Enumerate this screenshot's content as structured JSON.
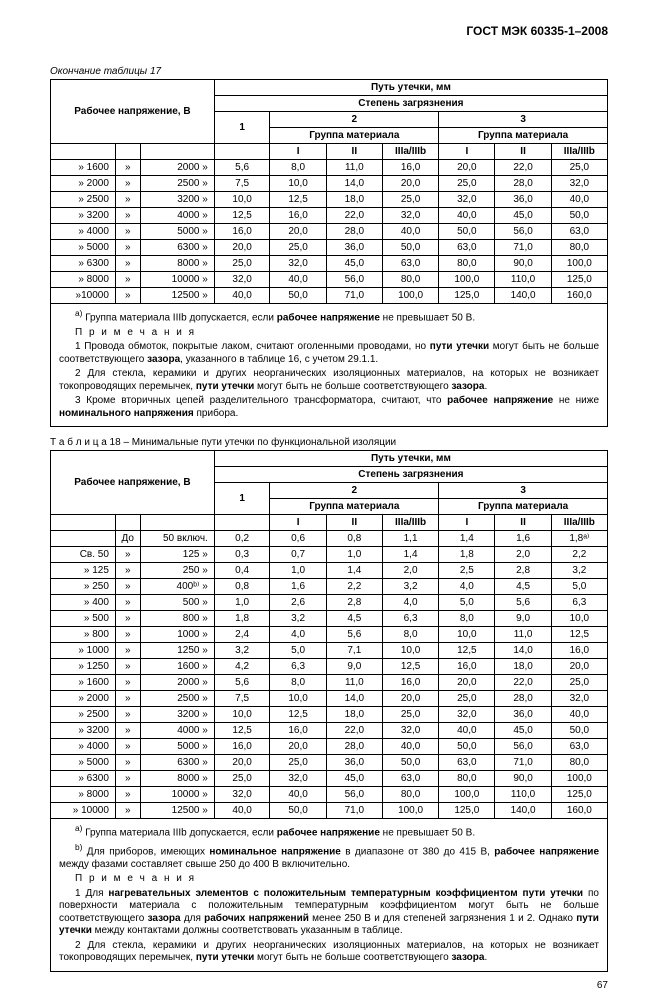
{
  "doc_id": "ГОСТ МЭК 60335-1–2008",
  "page_num": "67",
  "t17": {
    "caption": "Окончание таблицы 17",
    "hdr": {
      "rv": "Рабочее напряжение",
      "rv_unit": "В",
      "leak": "Путь утечки",
      "leak_unit": "мм",
      "degree": "Степень загрязнения",
      "group": "Группа материала",
      "c1": "1",
      "c2": "2",
      "c3": "3",
      "g1": "I",
      "g2": "II",
      "g3": "IIIa/IIIb"
    },
    "rows": [
      {
        "f": "» 1600",
        "s": "»",
        "t": "2000 »",
        "v": [
          "5,6",
          "8,0",
          "11,0",
          "16,0",
          "20,0",
          "22,0",
          "25,0"
        ]
      },
      {
        "f": "» 2000",
        "s": "»",
        "t": "2500 »",
        "v": [
          "7,5",
          "10,0",
          "14,0",
          "20,0",
          "25,0",
          "28,0",
          "32,0"
        ]
      },
      {
        "f": "» 2500",
        "s": "»",
        "t": "3200 »",
        "v": [
          "10,0",
          "12,5",
          "18,0",
          "25,0",
          "32,0",
          "36,0",
          "40,0"
        ]
      },
      {
        "f": "» 3200",
        "s": "»",
        "t": "4000 »",
        "v": [
          "12,5",
          "16,0",
          "22,0",
          "32,0",
          "40,0",
          "45,0",
          "50,0"
        ]
      },
      {
        "f": "» 4000",
        "s": "»",
        "t": "5000 »",
        "v": [
          "16,0",
          "20,0",
          "28,0",
          "40,0",
          "50,0",
          "56,0",
          "63,0"
        ]
      },
      {
        "f": "» 5000",
        "s": "»",
        "t": "6300 »",
        "v": [
          "20,0",
          "25,0",
          "36,0",
          "50,0",
          "63,0",
          "71,0",
          "80,0"
        ]
      },
      {
        "f": "» 6300",
        "s": "»",
        "t": "8000 »",
        "v": [
          "25,0",
          "32,0",
          "45,0",
          "63,0",
          "80,0",
          "90,0",
          "100,0"
        ]
      },
      {
        "f": "» 8000",
        "s": "»",
        "t": "10000 »",
        "v": [
          "32,0",
          "40,0",
          "56,0",
          "80,0",
          "100,0",
          "110,0",
          "125,0"
        ]
      },
      {
        "f": "»10000",
        "s": "»",
        "t": "12500 »",
        "v": [
          "40,0",
          "50,0",
          "71,0",
          "100,0",
          "125,0",
          "140,0",
          "160,0"
        ]
      }
    ],
    "note_a": "Группа материала IIIb допускается, если <b>рабочее напряжение</b> не превышает 50 В.",
    "notes_title": "П р и м е ч а н и я",
    "n1": "1 Провода обмоток, покрытые лаком, считают оголенными проводами, но <b>пути утечки</b> могут быть не больше соответствующего <b>зазора</b>, указанного в таблице 16, с учетом 29.1.1.",
    "n2": "2 Для стекла, керамики и других неорганических изоляционных материалов, на которых не возникает токопроводящих перемычек, <b>пути утечки</b> могут быть не больше соответствующего <b>зазора</b>.",
    "n3": "3 Кроме вторичных цепей разделительного трансформатора, считают, что <b>рабочее напряжение</b> не ниже <b>номинального напряжения</b> прибора."
  },
  "t18": {
    "title": "Т а б л и ц а  18 – Минимальные пути утечки по функциональной изоляции",
    "hdr_do": "До",
    "hdr_incl": "50 включ.",
    "rows": [
      {
        "f": "",
        "s": "До",
        "t": "50 включ.",
        "v": [
          "0,2",
          "0,6",
          "0,8",
          "1,1",
          "1,4",
          "1,6",
          "1,8ᵃ⁾"
        ]
      },
      {
        "f": "Св. 50",
        "s": "»",
        "t": "125 »",
        "v": [
          "0,3",
          "0,7",
          "1,0",
          "1,4",
          "1,8",
          "2,0",
          "2,2"
        ]
      },
      {
        "f": "» 125",
        "s": "»",
        "t": "250 »",
        "v": [
          "0,4",
          "1,0",
          "1,4",
          "2,0",
          "2,5",
          "2,8",
          "3,2"
        ]
      },
      {
        "f": "» 250",
        "s": "»",
        "t": "400ᵇ⁾ »",
        "v": [
          "0,8",
          "1,6",
          "2,2",
          "3,2",
          "4,0",
          "4,5",
          "5,0"
        ]
      },
      {
        "f": "» 400",
        "s": "»",
        "t": "500 »",
        "v": [
          "1,0",
          "2,6",
          "2,8",
          "4,0",
          "5,0",
          "5,6",
          "6,3"
        ]
      },
      {
        "f": "» 500",
        "s": "»",
        "t": "800 »",
        "v": [
          "1,8",
          "3,2",
          "4,5",
          "6,3",
          "8,0",
          "9,0",
          "10,0"
        ]
      },
      {
        "f": "» 800",
        "s": "»",
        "t": "1000 »",
        "v": [
          "2,4",
          "4,0",
          "5,6",
          "8,0",
          "10,0",
          "11,0",
          "12,5"
        ]
      },
      {
        "f": "» 1000",
        "s": "»",
        "t": "1250 »",
        "v": [
          "3,2",
          "5,0",
          "7,1",
          "10,0",
          "12,5",
          "14,0",
          "16,0"
        ]
      },
      {
        "f": "» 1250",
        "s": "»",
        "t": "1600 »",
        "v": [
          "4,2",
          "6,3",
          "9,0",
          "12,5",
          "16,0",
          "18,0",
          "20,0"
        ]
      },
      {
        "f": "» 1600",
        "s": "»",
        "t": "2000 »",
        "v": [
          "5,6",
          "8,0",
          "11,0",
          "16,0",
          "20,0",
          "22,0",
          "25,0"
        ]
      },
      {
        "f": "» 2000",
        "s": "»",
        "t": "2500 »",
        "v": [
          "7,5",
          "10,0",
          "14,0",
          "20,0",
          "25,0",
          "28,0",
          "32,0"
        ]
      },
      {
        "f": "» 2500",
        "s": "»",
        "t": "3200 »",
        "v": [
          "10,0",
          "12,5",
          "18,0",
          "25,0",
          "32,0",
          "36,0",
          "40,0"
        ]
      },
      {
        "f": "» 3200",
        "s": "»",
        "t": "4000 »",
        "v": [
          "12,5",
          "16,0",
          "22,0",
          "32,0",
          "40,0",
          "45,0",
          "50,0"
        ]
      },
      {
        "f": "» 4000",
        "s": "»",
        "t": "5000 »",
        "v": [
          "16,0",
          "20,0",
          "28,0",
          "40,0",
          "50,0",
          "56,0",
          "63,0"
        ]
      },
      {
        "f": "» 5000",
        "s": "»",
        "t": "6300 »",
        "v": [
          "20,0",
          "25,0",
          "36,0",
          "50,0",
          "63,0",
          "71,0",
          "80,0"
        ]
      },
      {
        "f": "» 6300",
        "s": "»",
        "t": "8000 »",
        "v": [
          "25,0",
          "32,0",
          "45,0",
          "63,0",
          "80,0",
          "90,0",
          "100,0"
        ]
      },
      {
        "f": "» 8000",
        "s": "»",
        "t": "10000 »",
        "v": [
          "32,0",
          "40,0",
          "56,0",
          "80,0",
          "100,0",
          "110,0",
          "125,0"
        ]
      },
      {
        "f": "» 10000",
        "s": "»",
        "t": "12500 »",
        "v": [
          "40,0",
          "50,0",
          "71,0",
          "100,0",
          "125,0",
          "140,0",
          "160,0"
        ]
      }
    ],
    "note_a": "Группа материала IIIb допускается, если <b>рабочее напряжение</b> не превышает 50 В.",
    "note_b": "Для приборов, имеющих <b>номинальное напряжение</b> в диапазоне от 380 до 415 В, <b>рабочее напряжение</b> между фазами составляет свыше 250 до 400 В включительно.",
    "notes_title": "П р и м е ч а н и я",
    "n1": "1 Для <b>нагревательных элементов с положительным температурным коэффициентом пути утечки</b> по поверхности материала с положительным температурным коэффициентом могут быть не больше соответствующего <b>зазора</b> для <b>рабочих напряжений</b> менее 250 В и для степеней загрязнения 1 и 2. Однако <b>пути утечки</b> между контактами должны соответствовать указанным в таблице.",
    "n2": "2 Для стекла, керамики и других неорганических изоляционных материалов, на которых не возникает токопроводящих перемычек, <b>пути утечки</b> могут быть не больше соответствующего <b>зазора</b>."
  }
}
